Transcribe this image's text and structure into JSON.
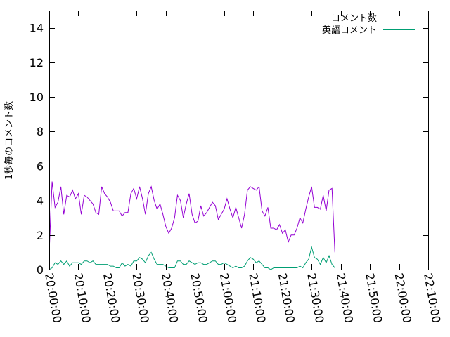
{
  "chart_data": {
    "type": "line",
    "title": "",
    "xlabel": "",
    "ylabel": "1秒毎のコメント数",
    "xlim": [
      "20:00:00",
      "22:10:00"
    ],
    "ylim": [
      0,
      15
    ],
    "grid": false,
    "legend": "top-right",
    "x_ticks": [
      "20:00:00",
      "20:10:00",
      "20:20:00",
      "20:30:00",
      "20:40:00",
      "20:50:00",
      "21:00:00",
      "21:10:00",
      "21:20:00",
      "21:30:00",
      "21:40:00",
      "21:50:00",
      "22:00:00",
      "22:10:00"
    ],
    "y_ticks": [
      0,
      2,
      4,
      6,
      8,
      10,
      12,
      14
    ],
    "x_start": "20:00:00",
    "x_step_seconds": 60,
    "series": [
      {
        "name": "コメント数",
        "color": "#9400d3",
        "values": [
          1.0,
          5.1,
          3.6,
          3.9,
          4.8,
          3.2,
          4.3,
          4.2,
          4.6,
          4.1,
          4.4,
          3.2,
          4.3,
          4.2,
          4.0,
          3.8,
          3.3,
          3.2,
          4.8,
          4.4,
          4.2,
          3.9,
          3.4,
          3.4,
          3.4,
          3.1,
          3.3,
          3.3,
          4.4,
          4.7,
          4.1,
          4.8,
          4.1,
          3.2,
          4.4,
          4.8,
          4.0,
          3.5,
          3.8,
          3.2,
          2.5,
          2.1,
          2.4,
          3.0,
          4.3,
          4.0,
          3.0,
          3.8,
          4.4,
          3.2,
          2.7,
          2.8,
          3.7,
          3.1,
          3.3,
          3.6,
          3.9,
          3.7,
          2.9,
          3.2,
          3.5,
          4.1,
          3.5,
          3.0,
          3.6,
          3.0,
          2.4,
          3.2,
          4.6,
          4.8,
          4.7,
          4.6,
          4.8,
          3.4,
          3.1,
          3.6,
          2.4,
          2.4,
          2.3,
          2.6,
          2.1,
          2.3,
          1.6,
          2.0,
          2.0,
          2.4,
          3.0,
          2.7,
          3.5,
          4.2,
          4.8,
          3.6,
          3.6,
          3.5,
          4.3,
          3.4,
          4.6,
          4.7,
          1.0
        ]
      },
      {
        "name": "英語コメント",
        "color": "#009e73",
        "values": [
          0.0,
          0.1,
          0.4,
          0.3,
          0.5,
          0.3,
          0.5,
          0.2,
          0.4,
          0.4,
          0.4,
          0.3,
          0.5,
          0.5,
          0.4,
          0.5,
          0.3,
          0.3,
          0.3,
          0.3,
          0.3,
          0.2,
          0.2,
          0.1,
          0.1,
          0.4,
          0.2,
          0.3,
          0.2,
          0.5,
          0.5,
          0.7,
          0.6,
          0.4,
          0.8,
          1.0,
          0.6,
          0.3,
          0.3,
          0.3,
          0.2,
          0.1,
          0.1,
          0.1,
          0.5,
          0.5,
          0.3,
          0.3,
          0.5,
          0.4,
          0.3,
          0.4,
          0.4,
          0.3,
          0.3,
          0.4,
          0.5,
          0.5,
          0.3,
          0.3,
          0.4,
          0.3,
          0.2,
          0.1,
          0.2,
          0.1,
          0.1,
          0.2,
          0.5,
          0.7,
          0.6,
          0.4,
          0.5,
          0.3,
          0.1,
          0.1,
          0.0,
          0.1,
          0.1,
          0.1,
          0.1,
          0.1,
          0.1,
          0.1,
          0.1,
          0.1,
          0.2,
          0.1,
          0.4,
          0.6,
          1.3,
          0.7,
          0.6,
          0.3,
          0.7,
          0.4,
          0.8,
          0.3,
          0.1
        ]
      }
    ]
  }
}
